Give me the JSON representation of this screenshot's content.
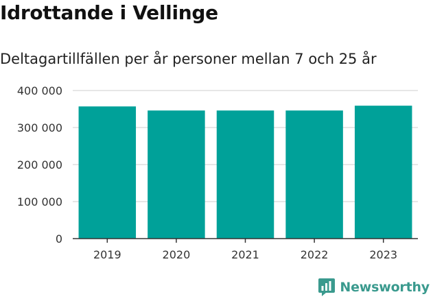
{
  "title": "Idrottande i Vellinge",
  "subtitle": "Deltagartillfällen per år personer mellan 7 och 25 år",
  "brand": {
    "name": "Newsworthy",
    "logo_icon": "newsworthy-logo-icon",
    "color": "#3a9a8e"
  },
  "chart_data": {
    "type": "bar",
    "title": "Idrottande i Vellinge",
    "subtitle": "Deltagartillfällen per år personer mellan 7 och 25 år",
    "categories": [
      "2019",
      "2020",
      "2021",
      "2022",
      "2023"
    ],
    "values": [
      357000,
      346000,
      346000,
      346000,
      359000
    ],
    "ylim": [
      0,
      400000
    ],
    "yticks": [
      0,
      100000,
      200000,
      300000,
      400000
    ],
    "ytick_labels": [
      "0",
      "100 000",
      "200 000",
      "300 000",
      "400 000"
    ],
    "xlabel": "",
    "ylabel": "",
    "grid": true,
    "bar_color": "#00a199",
    "grid_color": "#dddddd",
    "axis_color": "#333333"
  }
}
